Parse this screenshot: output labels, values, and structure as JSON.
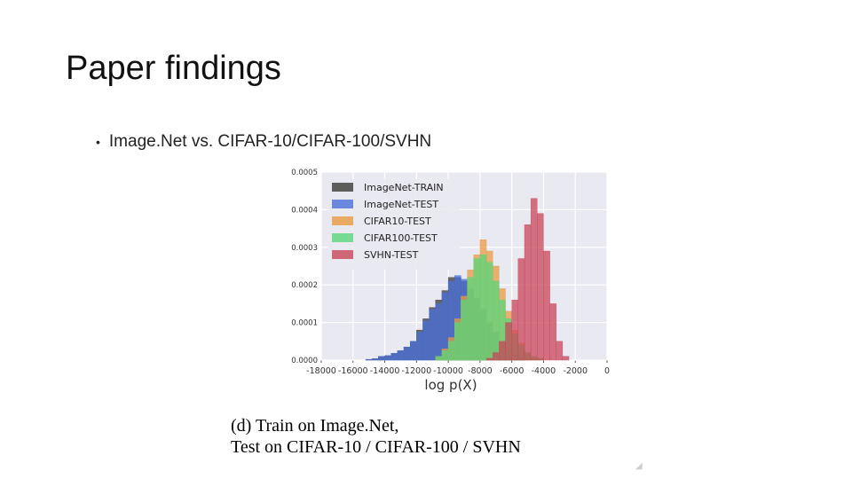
{
  "slide": {
    "title": "Paper findings",
    "bullet": "Image.Net vs. CIFAR-10/CIFAR-100/SVHN"
  },
  "figure": {
    "caption_line1": "(d) Train on Image.Net,",
    "caption_line2": "Test on CIFAR-10 / CIFAR-100 / SVHN"
  },
  "chart_data": {
    "type": "bar",
    "xlabel": "log p(X)",
    "ylabel": "",
    "xlim": [
      -18000,
      0
    ],
    "ylim": [
      0,
      0.0005
    ],
    "x_ticks": [
      "-18000",
      "-16000",
      "-14000",
      "-12000",
      "-10000",
      "-8000",
      "-6000",
      "-4000",
      "-2000",
      "0"
    ],
    "y_ticks": [
      "0.0000",
      "0.0001",
      "0.0002",
      "0.0003",
      "0.0004",
      "0.0005"
    ],
    "legend_position": "top-left",
    "grid": true,
    "bin_width": 400,
    "series": [
      {
        "name": "ImageNet-TRAIN",
        "color": "#3a3a3a",
        "bins": [
          [
            -15200,
            2e-06
          ],
          [
            -14800,
            4e-06
          ],
          [
            -14400,
            1e-05
          ],
          [
            -14000,
            1.2e-05
          ],
          [
            -13600,
            1.8e-05
          ],
          [
            -13200,
            2.5e-05
          ],
          [
            -12800,
            3.5e-05
          ],
          [
            -12400,
            5e-05
          ],
          [
            -12000,
            8e-05
          ],
          [
            -11600,
            0.00011
          ],
          [
            -11200,
            0.00014
          ],
          [
            -10800,
            0.00016
          ],
          [
            -10400,
            0.000185
          ],
          [
            -10000,
            0.00022
          ],
          [
            -9600,
            0.00022
          ],
          [
            -9200,
            0.00021
          ],
          [
            -8800,
            0.00018
          ],
          [
            -8400,
            0.00016
          ],
          [
            -8000,
            0.00013
          ],
          [
            -7600,
            0.0001
          ],
          [
            -7200,
            7.5e-05
          ],
          [
            -6800,
            5e-05
          ],
          [
            -6400,
            3e-05
          ],
          [
            -6000,
            1.5e-05
          ],
          [
            -5600,
            8e-06
          ]
        ]
      },
      {
        "name": "ImageNet-TEST",
        "color": "#4a6fd8",
        "bins": [
          [
            -15200,
            2e-06
          ],
          [
            -14800,
            4e-06
          ],
          [
            -14400,
            1e-05
          ],
          [
            -14000,
            1.2e-05
          ],
          [
            -13600,
            1.8e-05
          ],
          [
            -13200,
            2.5e-05
          ],
          [
            -12800,
            3.5e-05
          ],
          [
            -12400,
            5e-05
          ],
          [
            -12000,
            7.5e-05
          ],
          [
            -11600,
            0.000105
          ],
          [
            -11200,
            0.000135
          ],
          [
            -10800,
            0.00015
          ],
          [
            -10400,
            0.00018
          ],
          [
            -10000,
            0.00021
          ],
          [
            -9600,
            0.000225
          ],
          [
            -9200,
            0.000215
          ],
          [
            -8800,
            0.00019
          ],
          [
            -8400,
            0.000165
          ],
          [
            -8000,
            0.000135
          ],
          [
            -7600,
            0.0001
          ],
          [
            -7200,
            7.5e-05
          ],
          [
            -6800,
            5e-05
          ],
          [
            -6400,
            3e-05
          ],
          [
            -6000,
            1.5e-05
          ],
          [
            -5600,
            8e-06
          ]
        ]
      },
      {
        "name": "CIFAR10-TEST",
        "color": "#e89a44",
        "bins": [
          [
            -10800,
            1e-05
          ],
          [
            -10400,
            3e-05
          ],
          [
            -10000,
            6e-05
          ],
          [
            -9600,
            0.00011
          ],
          [
            -9200,
            0.00017
          ],
          [
            -8800,
            0.00024
          ],
          [
            -8400,
            0.00028
          ],
          [
            -8000,
            0.00032
          ],
          [
            -7600,
            0.00029
          ],
          [
            -7200,
            0.00025
          ],
          [
            -6800,
            0.00019
          ],
          [
            -6400,
            0.00013
          ],
          [
            -6000,
            8e-05
          ],
          [
            -5600,
            4.5e-05
          ],
          [
            -5200,
            2e-05
          ],
          [
            -4800,
            1e-05
          ],
          [
            -4400,
            5e-06
          ]
        ]
      },
      {
        "name": "CIFAR100-TEST",
        "color": "#5ad67a",
        "bins": [
          [
            -10800,
            1e-05
          ],
          [
            -10400,
            2.5e-05
          ],
          [
            -10000,
            5e-05
          ],
          [
            -9600,
            0.0001
          ],
          [
            -9200,
            0.00016
          ],
          [
            -8800,
            0.00022
          ],
          [
            -8400,
            0.00027
          ],
          [
            -8000,
            0.00028
          ],
          [
            -7600,
            0.00026
          ],
          [
            -7200,
            0.00021
          ],
          [
            -6800,
            0.00016
          ],
          [
            -6400,
            0.00011
          ],
          [
            -6000,
            7e-05
          ],
          [
            -5600,
            4e-05
          ],
          [
            -5200,
            2e-05
          ],
          [
            -4800,
            1e-05
          ],
          [
            -4400,
            5e-06
          ]
        ]
      },
      {
        "name": "SVHN-TEST",
        "color": "#c8465a",
        "bins": [
          [
            -7600,
            5e-06
          ],
          [
            -7200,
            2e-05
          ],
          [
            -6800,
            5e-05
          ],
          [
            -6400,
            0.0001
          ],
          [
            -6000,
            0.00016
          ],
          [
            -5600,
            0.00027
          ],
          [
            -5200,
            0.00036
          ],
          [
            -4800,
            0.00043
          ],
          [
            -4400,
            0.00039
          ],
          [
            -4000,
            0.00029
          ],
          [
            -3600,
            0.00015
          ],
          [
            -3200,
            5e-05
          ],
          [
            -2800,
            1e-05
          ]
        ]
      }
    ]
  }
}
